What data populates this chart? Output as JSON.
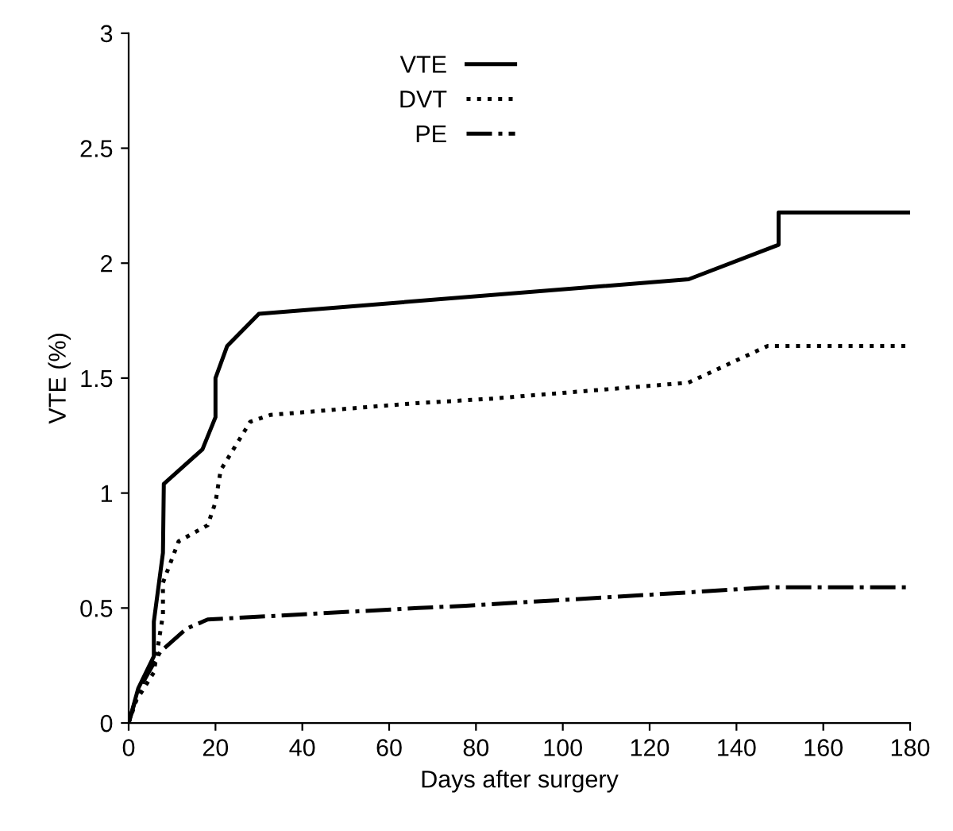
{
  "chart_data": {
    "type": "line",
    "xlabel": "Days after surgery",
    "ylabel": "VTE (%)",
    "xlim": [
      0,
      180
    ],
    "ylim": [
      0,
      3
    ],
    "xticks": [
      0,
      20,
      40,
      60,
      80,
      100,
      120,
      140,
      160,
      180
    ],
    "yticks": [
      0,
      0.5,
      1,
      1.5,
      2,
      2.5,
      3
    ],
    "grid": false,
    "legend": "top",
    "marker": "none",
    "series": [
      {
        "name": "VTE",
        "color": "#000000",
        "line_style": "solid",
        "x": [
          0,
          2.2,
          5.8,
          5.8,
          7.9,
          8.1,
          17,
          20,
          20,
          22.7,
          30,
          129,
          149.7,
          149.7,
          180
        ],
        "values": [
          0,
          0.15,
          0.29,
          0.44,
          0.74,
          1.04,
          1.19,
          1.33,
          1.5,
          1.64,
          1.78,
          1.93,
          2.08,
          2.22,
          2.22
        ]
      },
      {
        "name": "DVT",
        "color": "#000000",
        "line_style": "dotted",
        "x": [
          0,
          1.8,
          5.8,
          7.9,
          7.9,
          11.5,
          18.2,
          20,
          21.2,
          28,
          32.7,
          65.5,
          83.2,
          128.9,
          147.2,
          180
        ],
        "values": [
          0,
          0.1,
          0.22,
          0.47,
          0.61,
          0.79,
          0.86,
          0.96,
          1.1,
          1.31,
          1.34,
          1.39,
          1.41,
          1.48,
          1.64,
          1.64
        ]
      },
      {
        "name": "PE",
        "color": "#000000",
        "line_style": "dashdot",
        "x": [
          0,
          2.2,
          7.3,
          13.3,
          18.2,
          66.7,
          77.7,
          126.5,
          147.2,
          180
        ],
        "values": [
          0,
          0.14,
          0.31,
          0.41,
          0.45,
          0.5,
          0.51,
          0.565,
          0.59,
          0.59
        ]
      }
    ]
  }
}
